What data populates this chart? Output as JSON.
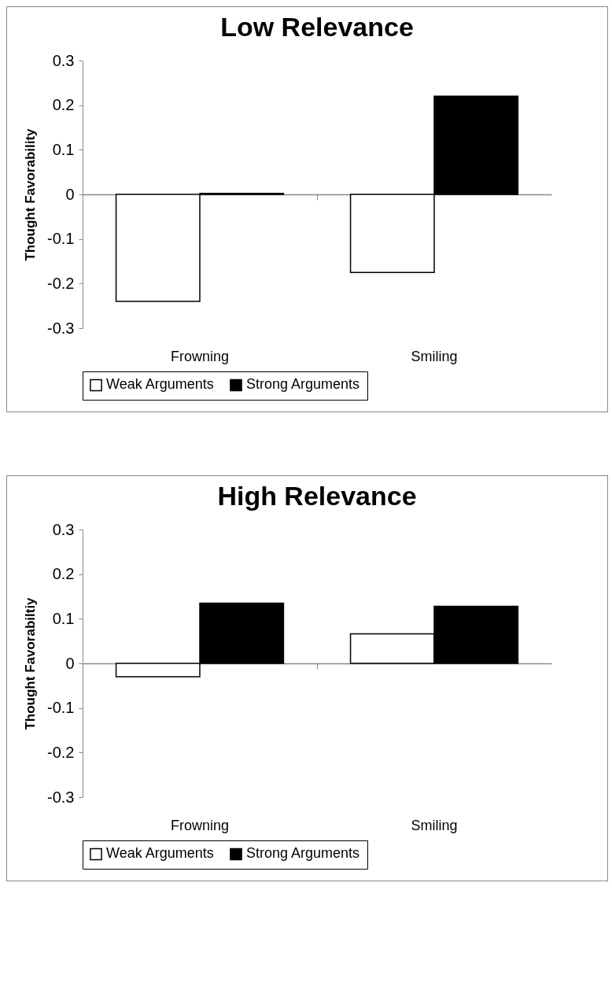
{
  "chart_data": [
    {
      "type": "bar",
      "title": "Low Relevance",
      "ylabel": "Thought Favorability",
      "categories": [
        "Frowning",
        "Smiling"
      ],
      "series": [
        {
          "name": "Weak Arguments",
          "color": "#ffffff",
          "values": [
            -0.24,
            -0.175
          ]
        },
        {
          "name": "Strong Arguments",
          "color": "#000000",
          "values": [
            0.002,
            0.22
          ]
        }
      ],
      "ylim": [
        -0.3,
        0.3
      ],
      "yticks": [
        -0.3,
        -0.2,
        -0.1,
        0,
        0.1,
        0.2,
        0.3
      ],
      "legend": "bottom"
    },
    {
      "type": "bar",
      "title": "High Relevance",
      "ylabel": "Thought Favorabiltiy",
      "categories": [
        "Frowning",
        "Smiling"
      ],
      "series": [
        {
          "name": "Weak Arguments",
          "color": "#ffffff",
          "values": [
            -0.03,
            0.066
          ]
        },
        {
          "name": "Strong Arguments",
          "color": "#000000",
          "values": [
            0.135,
            0.128
          ]
        }
      ],
      "ylim": [
        -0.3,
        0.3
      ],
      "yticks": [
        -0.3,
        -0.2,
        -0.1,
        0,
        0.1,
        0.2,
        0.3
      ],
      "legend": "bottom"
    }
  ]
}
